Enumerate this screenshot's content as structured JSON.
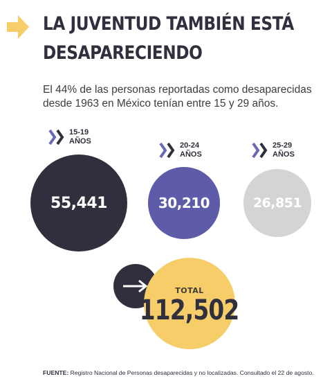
{
  "header": {
    "title_line1": "LA JUVENTUD TAMBIÉN ESTÁ",
    "title_line2": "DESAPARECIENDO",
    "subtitle": "El 44% de las personas reportadas como desaparecidas desde 1963 en México tenían entre 15 y 29 años."
  },
  "colors": {
    "accent_yellow": "#f6cd68",
    "dark": "#2f2f3e",
    "purple": "#5e5ca8",
    "gray": "#d4d4d4",
    "chevron_purple": "#6a68b4"
  },
  "chart_data": {
    "type": "bubble",
    "title": "LA JUVENTUD TAMBIÉN ESTÁ DESAPARECIENDO",
    "subtitle": "El 44% de las personas reportadas como desaparecidas desde 1963 en México tenían entre 15 y 29 años.",
    "series": [
      {
        "range": "15-19",
        "unit": "AÑOS",
        "value": 55441,
        "label": "55,441",
        "color": "#2f2f3e"
      },
      {
        "range": "20-24",
        "unit": "AÑOS",
        "value": 30210,
        "label": "30,210",
        "color": "#5e5ca8"
      },
      {
        "range": "25-29",
        "unit": "AÑOS",
        "value": 26851,
        "label": "26,851",
        "color": "#d4d4d4"
      }
    ],
    "total": {
      "label": "TOTAL",
      "value": 112502,
      "display": "112,502"
    }
  },
  "footer": {
    "source_label": "FUENTE:",
    "source_text": " Registro Nacional de Personas desaparecidas y no localizadas. Consultado el 22 de agosto."
  }
}
